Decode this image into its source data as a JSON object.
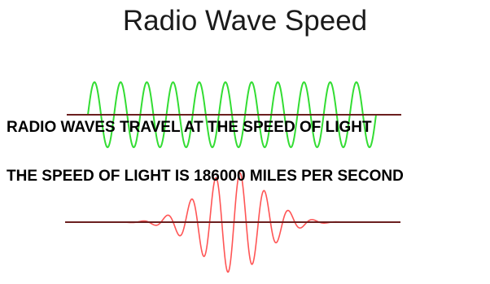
{
  "title": "Radio Wave Speed",
  "text_lines": [
    "RADIO WAVES TRAVEL AT THE SPEED OF LIGHT",
    "THE SPEED OF LIGHT IS 186000 MILES PER SECOND"
  ],
  "colors": {
    "background": "#ffffff",
    "title_text": "#1a1a1a",
    "body_text": "#000000",
    "green_wave": "#33dd33",
    "red_wave": "#ff5555",
    "axis_line": "#6b1f1f"
  },
  "illustrations": {
    "top_wave": "green-sine-wave-icon",
    "bottom_wave": "red-wave-packet-icon"
  }
}
